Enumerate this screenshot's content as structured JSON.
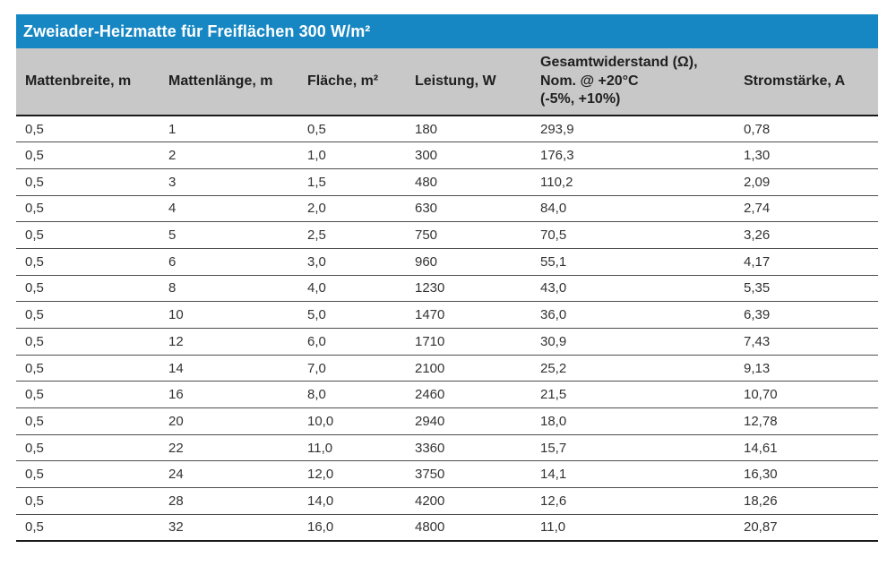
{
  "title": "Zweiader-Heizmatte für Freiflächen 300 W/m²",
  "table": {
    "columns": [
      "Mattenbreite, m",
      "Mattenlänge, m",
      "Fläche, m²",
      "Leistung, W",
      "Gesamtwiderstand (Ω),\nNom. @ +20°C\n(-5%, +10%)",
      "Stromstärke, A"
    ],
    "rows": [
      [
        "0,5",
        "1",
        "0,5",
        "180",
        "293,9",
        "0,78"
      ],
      [
        "0,5",
        "2",
        "1,0",
        "300",
        "176,3",
        "1,30"
      ],
      [
        "0,5",
        "3",
        "1,5",
        "480",
        "110,2",
        "2,09"
      ],
      [
        "0,5",
        "4",
        "2,0",
        "630",
        "84,0",
        "2,74"
      ],
      [
        "0,5",
        "5",
        "2,5",
        "750",
        "70,5",
        "3,26"
      ],
      [
        "0,5",
        "6",
        "3,0",
        "960",
        "55,1",
        "4,17"
      ],
      [
        "0,5",
        "8",
        "4,0",
        "1230",
        "43,0",
        "5,35"
      ],
      [
        "0,5",
        "10",
        "5,0",
        "1470",
        "36,0",
        "6,39"
      ],
      [
        "0,5",
        "12",
        "6,0",
        "1710",
        "30,9",
        "7,43"
      ],
      [
        "0,5",
        "14",
        "7,0",
        "2100",
        "25,2",
        "9,13"
      ],
      [
        "0,5",
        "16",
        "8,0",
        "2460",
        "21,5",
        "10,70"
      ],
      [
        "0,5",
        "20",
        "10,0",
        "2940",
        "18,0",
        "12,78"
      ],
      [
        "0,5",
        "22",
        "11,0",
        "3360",
        "15,7",
        "14,61"
      ],
      [
        "0,5",
        "24",
        "12,0",
        "3750",
        "14,1",
        "16,30"
      ],
      [
        "0,5",
        "28",
        "14,0",
        "4200",
        "12,6",
        "18,26"
      ],
      [
        "0,5",
        "32",
        "16,0",
        "4800",
        "11,0",
        "20,87"
      ]
    ]
  },
  "chart_data": {
    "type": "table",
    "title": "Zweiader-Heizmatte für Freiflächen 300 W/m²",
    "columns": [
      "Mattenbreite, m",
      "Mattenlänge, m",
      "Fläche, m²",
      "Leistung, W",
      "Gesamtwiderstand (Ω), Nom. @ +20°C (-5%, +10%)",
      "Stromstärke, A"
    ],
    "rows": [
      [
        "0,5",
        "1",
        "0,5",
        "180",
        "293,9",
        "0,78"
      ],
      [
        "0,5",
        "2",
        "1,0",
        "300",
        "176,3",
        "1,30"
      ],
      [
        "0,5",
        "3",
        "1,5",
        "480",
        "110,2",
        "2,09"
      ],
      [
        "0,5",
        "4",
        "2,0",
        "630",
        "84,0",
        "2,74"
      ],
      [
        "0,5",
        "5",
        "2,5",
        "750",
        "70,5",
        "3,26"
      ],
      [
        "0,5",
        "6",
        "3,0",
        "960",
        "55,1",
        "4,17"
      ],
      [
        "0,5",
        "8",
        "4,0",
        "1230",
        "43,0",
        "5,35"
      ],
      [
        "0,5",
        "10",
        "5,0",
        "1470",
        "36,0",
        "6,39"
      ],
      [
        "0,5",
        "12",
        "6,0",
        "1710",
        "30,9",
        "7,43"
      ],
      [
        "0,5",
        "14",
        "7,0",
        "2100",
        "25,2",
        "9,13"
      ],
      [
        "0,5",
        "16",
        "8,0",
        "2460",
        "21,5",
        "10,70"
      ],
      [
        "0,5",
        "20",
        "10,0",
        "2940",
        "18,0",
        "12,78"
      ],
      [
        "0,5",
        "22",
        "11,0",
        "3360",
        "15,7",
        "14,61"
      ],
      [
        "0,5",
        "24",
        "12,0",
        "3750",
        "14,1",
        "16,30"
      ],
      [
        "0,5",
        "28",
        "14,0",
        "4200",
        "12,6",
        "18,26"
      ],
      [
        "0,5",
        "32",
        "16,0",
        "4800",
        "11,0",
        "20,87"
      ]
    ]
  },
  "colors": {
    "title_bar_bg": "#1787c4",
    "title_text": "#ffffff",
    "header_bg": "#c8c8c8",
    "header_text": "#1f1f1f",
    "body_text": "#333333",
    "row_divider": "#4d4d4d",
    "strong_border": "#1a1a1a",
    "page_bg": "#ffffff"
  }
}
